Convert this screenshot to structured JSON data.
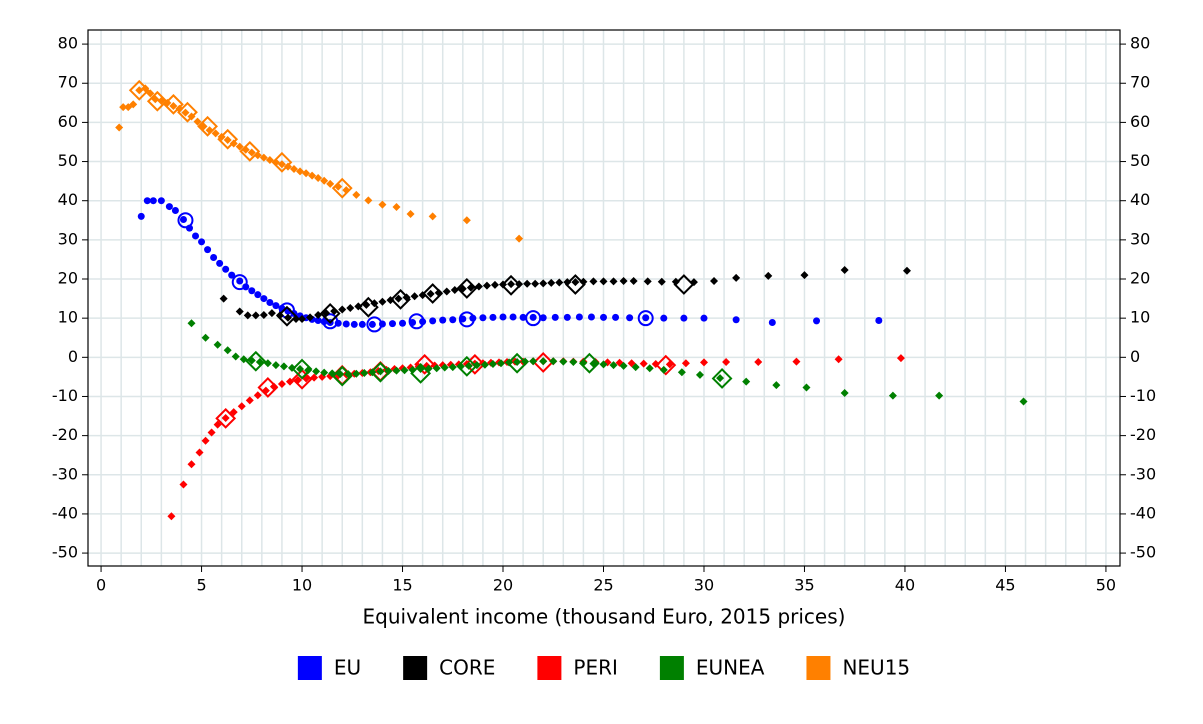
{
  "chart_data": {
    "type": "scatter",
    "x_label": "Equivalent income (thousand Euro, 2015 prices)",
    "xlim": [
      -0.65,
      50.7
    ],
    "ylim": [
      -53.3,
      83.6
    ],
    "xticks": [
      0,
      5,
      10,
      15,
      20,
      25,
      30,
      35,
      40,
      45,
      50
    ],
    "yticks": [
      -50,
      -40,
      -30,
      -20,
      -10,
      0,
      10,
      20,
      30,
      40,
      50,
      60,
      70,
      80
    ],
    "grid": true,
    "legend_position": "bottom",
    "series": [
      {
        "name": "EU",
        "color": "#0000ff",
        "marker": "circle",
        "hollow_marker": "circle",
        "x": [
          2.0,
          2.3,
          2.6,
          3.0,
          3.4,
          3.7,
          4.1,
          4.4,
          4.7,
          5.0,
          5.3,
          5.6,
          5.9,
          6.2,
          6.5,
          6.9,
          7.2,
          7.5,
          7.8,
          8.1,
          8.4,
          8.7,
          9.0,
          9.3,
          9.6,
          9.9,
          10.2,
          10.5,
          10.8,
          11.1,
          11.4,
          11.8,
          12.2,
          12.6,
          13.0,
          13.5,
          14.0,
          14.5,
          15.0,
          15.5,
          16.0,
          16.5,
          17.0,
          17.5,
          18.0,
          18.5,
          19.0,
          19.5,
          20.0,
          20.5,
          21.0,
          21.5,
          22.0,
          22.6,
          23.2,
          23.8,
          24.4,
          25.0,
          25.6,
          26.3,
          27.1,
          28.0,
          29.0,
          30.0,
          31.6,
          33.4,
          35.6,
          38.7
        ],
        "values": [
          36,
          40,
          40,
          40,
          38.5,
          37.5,
          35.2,
          33,
          31,
          29.5,
          27.5,
          25.5,
          24,
          22.5,
          21,
          19.5,
          18,
          17,
          16,
          15,
          14,
          13.2,
          12.5,
          11.8,
          11.2,
          10.6,
          10.1,
          9.7,
          9.4,
          9.1,
          8.9,
          8.7,
          8.5,
          8.4,
          8.4,
          8.4,
          8.5,
          8.6,
          8.7,
          8.9,
          9.1,
          9.3,
          9.5,
          9.6,
          9.8,
          10,
          10.1,
          10.2,
          10.3,
          10.3,
          10.2,
          10.2,
          10.1,
          10.2,
          10.2,
          10.3,
          10.3,
          10.2,
          10.2,
          10.1,
          10.1,
          10,
          10,
          10,
          9.6,
          8.9,
          9.3,
          9.4
        ],
        "hollow_x": [
          4.2,
          6.9,
          9.25,
          11.4,
          13.6,
          15.7,
          18.2,
          21.5,
          27.1
        ],
        "hollow_values": [
          35,
          19.2,
          12,
          9.2,
          8.4,
          9.2,
          9.7,
          10,
          10
        ]
      },
      {
        "name": "CORE",
        "color": "#000000",
        "marker": "diamond",
        "hollow_marker": "diamond",
        "x": [
          6.1,
          6.9,
          7.3,
          7.7,
          8.1,
          8.5,
          8.9,
          9.3,
          9.7,
          10.0,
          10.4,
          10.8,
          11.2,
          11.6,
          12.0,
          12.4,
          12.8,
          13.2,
          13.6,
          14.0,
          14.4,
          14.8,
          15.2,
          15.6,
          16.0,
          16.4,
          16.8,
          17.2,
          17.6,
          18.0,
          18.4,
          18.8,
          19.2,
          19.6,
          20.0,
          20.4,
          20.8,
          21.2,
          21.6,
          22.0,
          22.4,
          22.8,
          23.2,
          23.6,
          24.0,
          24.5,
          25.0,
          25.5,
          26.0,
          26.5,
          27.2,
          27.9,
          28.6,
          29.5,
          30.5,
          31.6,
          33.2,
          35.0,
          37.0,
          40.1
        ],
        "values": [
          15,
          11.7,
          10.7,
          10.7,
          10.8,
          11.3,
          10.7,
          10.1,
          9.8,
          9.8,
          10.2,
          10.8,
          11.3,
          11.8,
          12.2,
          12.6,
          13,
          13.4,
          13.8,
          14.2,
          14.6,
          15,
          15.3,
          15.6,
          15.9,
          16.2,
          16.5,
          16.8,
          17.2,
          17.5,
          17.8,
          18.1,
          18.3,
          18.5,
          18.6,
          18.7,
          18.7,
          18.8,
          18.8,
          18.9,
          19,
          19.1,
          19.2,
          19.2,
          19.3,
          19.4,
          19.4,
          19.4,
          19.5,
          19.5,
          19.4,
          19.3,
          19.3,
          19.2,
          19.5,
          20.3,
          20.8,
          21,
          22.3,
          22.1
        ],
        "hollow_x": [
          9.25,
          11.4,
          13.3,
          14.9,
          16.5,
          18.2,
          20.4,
          23.6,
          29.0
        ],
        "hollow_values": [
          10.5,
          11.2,
          12.8,
          14.8,
          16.3,
          17.6,
          18.4,
          18.6,
          18.6
        ]
      },
      {
        "name": "PERI",
        "color": "#ff0000",
        "marker": "diamond",
        "hollow_marker": "diamond",
        "x": [
          3.5,
          4.1,
          4.5,
          4.9,
          5.2,
          5.5,
          5.8,
          6.2,
          6.6,
          7.0,
          7.4,
          7.8,
          8.2,
          8.6,
          9.0,
          9.4,
          9.8,
          10.2,
          10.6,
          11.0,
          11.4,
          11.8,
          12.2,
          12.6,
          13.0,
          13.4,
          13.8,
          14.2,
          14.6,
          15.0,
          15.4,
          15.8,
          16.2,
          16.6,
          17.0,
          17.4,
          17.8,
          18.2,
          18.6,
          19.0,
          19.4,
          19.8,
          20.2,
          20.6,
          21.0,
          21.5,
          22.0,
          22.5,
          23.0,
          23.5,
          24.0,
          24.6,
          25.2,
          25.8,
          26.4,
          27.0,
          27.6,
          28.3,
          29.1,
          30.0,
          31.1,
          32.7,
          34.6,
          36.7,
          39.8
        ],
        "values": [
          -40.6,
          -32.5,
          -27.3,
          -24.3,
          -21.3,
          -19.2,
          -17.2,
          -15.5,
          -14,
          -12.5,
          -11,
          -9.7,
          -8.5,
          -7.5,
          -6.8,
          -6.2,
          -5.8,
          -5.4,
          -5.2,
          -5,
          -4.8,
          -4.6,
          -4.4,
          -4.2,
          -4,
          -3.8,
          -3.5,
          -3.2,
          -3,
          -2.8,
          -2.6,
          -2.4,
          -2.2,
          -2.1,
          -2,
          -1.9,
          -1.8,
          -1.7,
          -1.6,
          -1.5,
          -1.4,
          -1.3,
          -1.2,
          -1.1,
          -1.1,
          -1,
          -1,
          -1,
          -1,
          -1.1,
          -1.1,
          -1.2,
          -1.3,
          -1.4,
          -1.5,
          -1.6,
          -1.7,
          -1.8,
          -1.5,
          -1.3,
          -1.2,
          -1.2,
          -1.1,
          -0.5,
          -0.2
        ],
        "hollow_x": [
          6.2,
          8.3,
          10.0,
          12.0,
          13.9,
          16.1,
          18.6,
          22.0,
          28.1
        ],
        "hollow_values": [
          -15.6,
          -7.7,
          -5.6,
          -4.6,
          -3.6,
          -1.8,
          -1.8,
          -1.3,
          -2
        ]
      },
      {
        "name": "EUNEA",
        "color": "#008000",
        "marker": "diamond",
        "hollow_marker": "diamond",
        "x": [
          4.5,
          5.2,
          5.8,
          6.3,
          6.7,
          7.1,
          7.5,
          7.9,
          8.3,
          8.7,
          9.1,
          9.5,
          9.9,
          10.3,
          10.7,
          11.1,
          11.5,
          11.9,
          12.3,
          12.7,
          13.1,
          13.5,
          13.9,
          14.3,
          14.7,
          15.1,
          15.5,
          15.9,
          16.3,
          16.7,
          17.1,
          17.5,
          17.9,
          18.3,
          18.7,
          19.1,
          19.5,
          19.9,
          20.3,
          20.7,
          21.1,
          21.5,
          22.0,
          22.5,
          23.0,
          23.5,
          24.0,
          24.5,
          25.0,
          25.5,
          26.0,
          26.6,
          27.3,
          28.0,
          28.9,
          29.8,
          30.8,
          32.1,
          33.6,
          35.1,
          37.0,
          39.4,
          41.7,
          45.9
        ],
        "values": [
          8.7,
          5,
          3.2,
          1.8,
          0.2,
          -0.5,
          -0.8,
          -1.2,
          -1.5,
          -2,
          -2.3,
          -2.7,
          -3,
          -3.3,
          -3.6,
          -3.9,
          -4.1,
          -4.3,
          -4.3,
          -4.2,
          -4,
          -3.8,
          -3.6,
          -3.5,
          -3.4,
          -3.3,
          -3.2,
          -3,
          -2.9,
          -2.8,
          -2.6,
          -2.5,
          -2.3,
          -2.2,
          -2,
          -1.9,
          -1.7,
          -1.5,
          -1.3,
          -1.2,
          -1.1,
          -1,
          -1,
          -1,
          -1.1,
          -1.2,
          -1.4,
          -1.6,
          -1.8,
          -2,
          -2.2,
          -2.5,
          -2.8,
          -3.2,
          -3.8,
          -4.5,
          -5.3,
          -6.2,
          -7.1,
          -7.7,
          -9.1,
          -9.8,
          -9.8,
          -11.3
        ],
        "hollow_x": [
          7.7,
          10.0,
          12.0,
          13.9,
          15.9,
          18.2,
          20.7,
          24.3,
          30.9
        ],
        "hollow_values": [
          -1,
          -3,
          -4.8,
          -3.8,
          -4.1,
          -2.3,
          -1.5,
          -1.5,
          -5.4
        ]
      },
      {
        "name": "NEU15",
        "color": "#ff8000",
        "marker": "diamond",
        "hollow_marker": "diamond",
        "x": [
          0.9,
          1.1,
          1.35,
          1.6,
          1.9,
          2.2,
          2.45,
          2.7,
          3.0,
          3.3,
          3.6,
          3.9,
          4.2,
          4.5,
          4.8,
          5.1,
          5.4,
          5.7,
          6.0,
          6.3,
          6.6,
          6.9,
          7.2,
          7.5,
          7.8,
          8.1,
          8.4,
          8.7,
          9.0,
          9.3,
          9.6,
          9.9,
          10.2,
          10.5,
          10.8,
          11.1,
          11.4,
          11.8,
          12.2,
          12.7,
          13.3,
          14.0,
          14.7,
          15.4,
          16.5,
          18.2,
          20.8
        ],
        "values": [
          58.7,
          63.9,
          63.9,
          64.6,
          68.2,
          68.7,
          67.4,
          65.9,
          65.5,
          65,
          64.2,
          63.5,
          62.5,
          61.5,
          60.2,
          59,
          58,
          57.2,
          56.3,
          55.5,
          54.6,
          53.8,
          53,
          52.3,
          51.6,
          51,
          50.4,
          49.8,
          49.3,
          48.7,
          48.1,
          47.5,
          47,
          46.4,
          45.8,
          45.1,
          44.3,
          43.6,
          42.7,
          41.5,
          40.1,
          39,
          38.4,
          36.6,
          36,
          35,
          30.3
        ],
        "hollow_x": [
          1.9,
          2.8,
          3.6,
          4.3,
          5.3,
          6.3,
          7.4,
          9.0,
          12.0
        ],
        "hollow_values": [
          68.2,
          65.4,
          64.6,
          62.6,
          59,
          55.7,
          52.6,
          49.8,
          43.2
        ]
      }
    ]
  }
}
